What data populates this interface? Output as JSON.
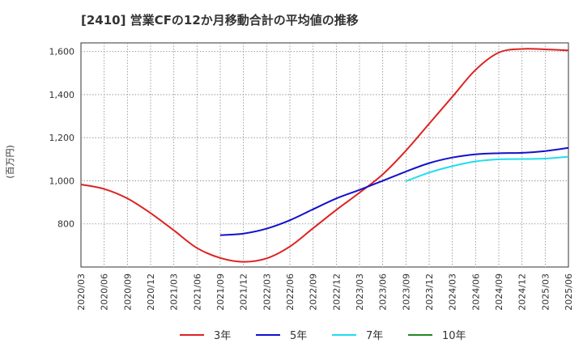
{
  "chart_data": {
    "type": "line",
    "title": "[2410]  営業CFの12か月移動合計の平均値の推移",
    "ylabel": "(百万円)",
    "xlabel": "",
    "ylim": [
      600,
      1640
    ],
    "yticks": [
      800,
      1000,
      1200,
      1400,
      1600
    ],
    "ytick_labels": [
      "800",
      "1,000",
      "1,200",
      "1,400",
      "1,600"
    ],
    "x_categories": [
      "2020/03",
      "2020/06",
      "2020/09",
      "2020/12",
      "2021/03",
      "2021/06",
      "2021/09",
      "2021/12",
      "2022/03",
      "2022/06",
      "2022/09",
      "2022/12",
      "2023/03",
      "2023/06",
      "2023/09",
      "2023/12",
      "2024/03",
      "2024/06",
      "2024/09",
      "2024/12",
      "2025/03",
      "2025/06"
    ],
    "grid": true,
    "legend_position": "bottom",
    "series": [
      {
        "name": "3年",
        "color": "#dd2222",
        "values": [
          983,
          962,
          918,
          850,
          770,
          688,
          642,
          624,
          640,
          695,
          780,
          865,
          945,
          1030,
          1140,
          1265,
          1390,
          1515,
          1595,
          1612,
          1610,
          1605
        ]
      },
      {
        "name": "5年",
        "color": "#1111cc",
        "values": [
          null,
          null,
          null,
          null,
          null,
          null,
          748,
          755,
          778,
          817,
          868,
          918,
          958,
          1000,
          1043,
          1082,
          1108,
          1123,
          1128,
          1130,
          1138,
          1153
        ]
      },
      {
        "name": "7年",
        "color": "#22ddee",
        "values": [
          null,
          null,
          null,
          null,
          null,
          null,
          null,
          null,
          null,
          null,
          null,
          null,
          null,
          null,
          998,
          1038,
          1068,
          1090,
          1100,
          1101,
          1103,
          1112
        ]
      },
      {
        "name": "10年",
        "color": "#228822",
        "values": []
      }
    ]
  }
}
